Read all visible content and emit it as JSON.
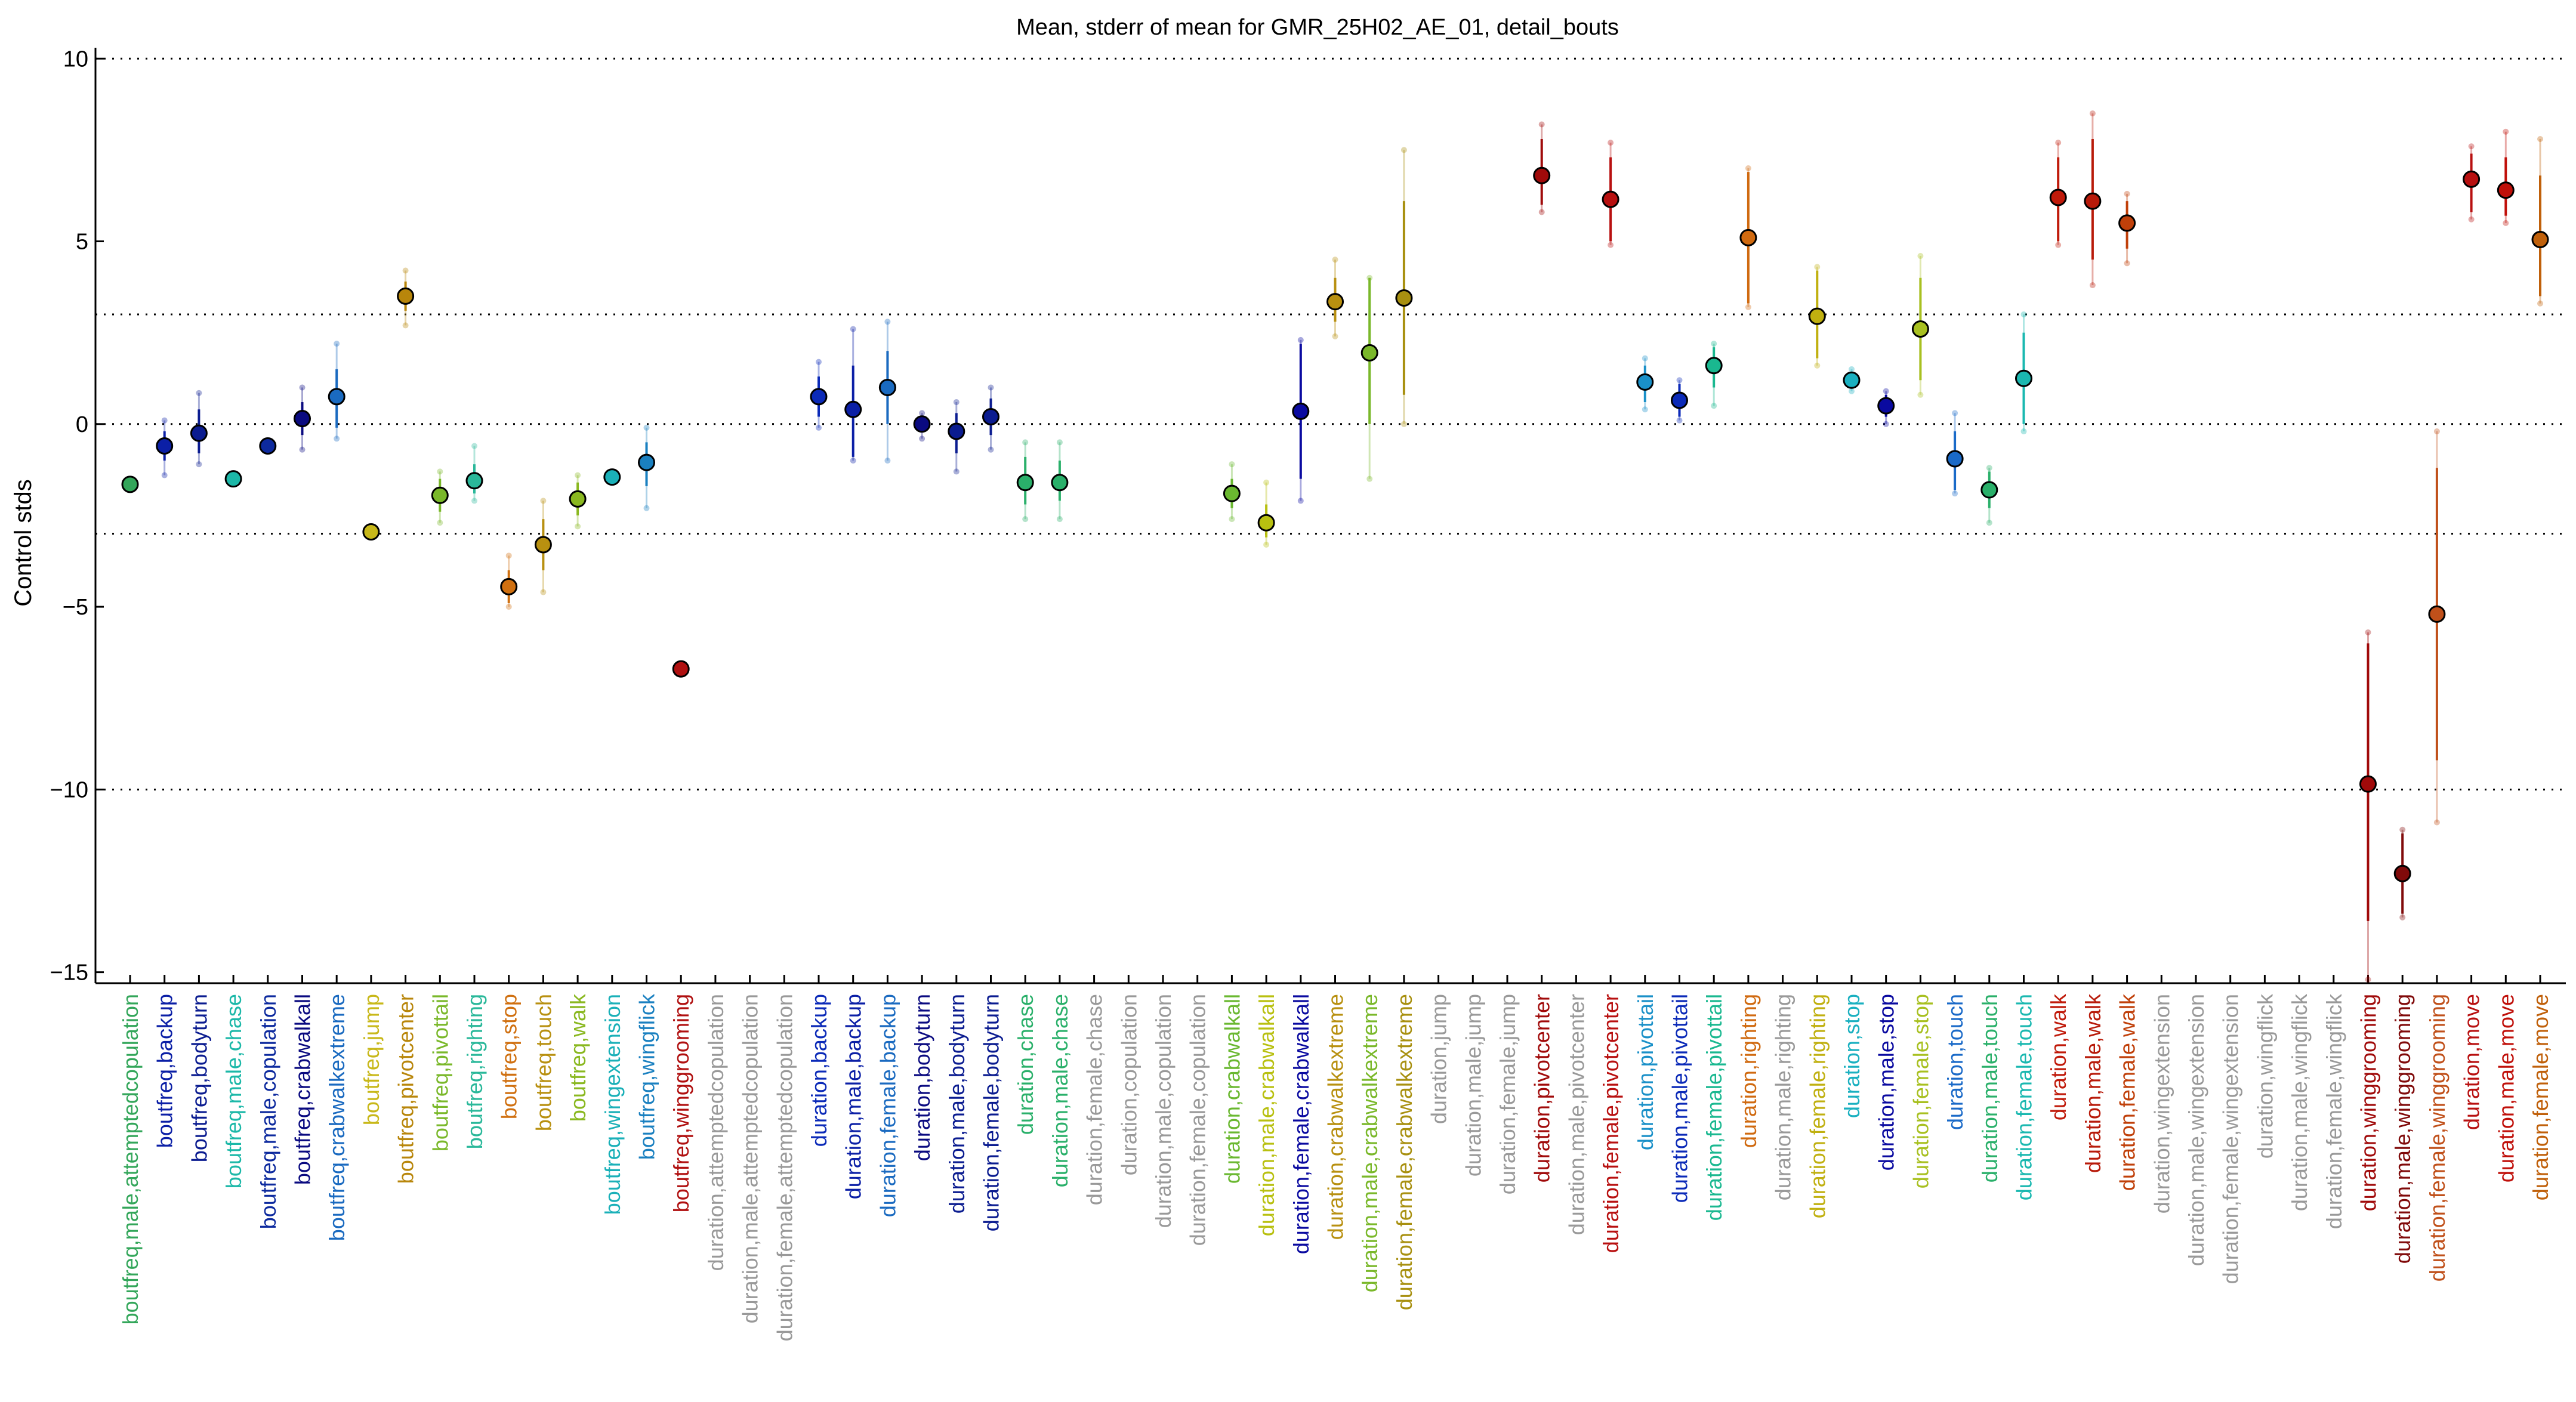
{
  "chart_data": {
    "type": "scatter",
    "title": "Mean, stderr of mean for GMR_25H02_AE_01, detail_bouts",
    "ylabel": "Control stds",
    "ylim": [
      -15.3,
      10.2
    ],
    "yticks": [
      10,
      5,
      0,
      -5,
      -10,
      -15
    ],
    "hlines": [
      10,
      3,
      0,
      -3,
      -10
    ],
    "grid": "dotted horizontal lines",
    "categories": [
      {
        "label": "boutfreq,male,attemptedcopulation",
        "color": "#33a65a",
        "mean": -1.65,
        "err_lo": null,
        "err_hi": null,
        "range_lo": null,
        "range_hi": null
      },
      {
        "label": "boutfreq,backup",
        "color": "#0b1fa6",
        "mean": -0.6,
        "err_lo": -1.0,
        "err_hi": -0.2,
        "range_lo": -1.4,
        "range_hi": 0.1
      },
      {
        "label": "boutfreq,bodyturn",
        "color": "#0b1c90",
        "mean": -0.25,
        "err_lo": -0.8,
        "err_hi": 0.4,
        "range_lo": -1.1,
        "range_hi": 0.85
      },
      {
        "label": "boutfreq,male,chase",
        "color": "#1cb8a8",
        "mean": -1.5,
        "err_lo": null,
        "err_hi": null,
        "range_lo": null,
        "range_hi": null
      },
      {
        "label": "boutfreq,male,copulation",
        "color": "#0d2a9e",
        "mean": -0.6,
        "err_lo": null,
        "err_hi": null,
        "range_lo": null,
        "range_hi": null
      },
      {
        "label": "boutfreq,crabwalkall",
        "color": "#0a0a80",
        "mean": 0.15,
        "err_lo": -0.3,
        "err_hi": 0.6,
        "range_lo": -0.7,
        "range_hi": 1.0
      },
      {
        "label": "boutfreq,crabwalkextreme",
        "color": "#1a6ac0",
        "mean": 0.75,
        "err_lo": -0.1,
        "err_hi": 1.5,
        "range_lo": -0.4,
        "range_hi": 2.2
      },
      {
        "label": "boutfreq,jump",
        "color": "#c8b81a",
        "mean": -2.95,
        "err_lo": null,
        "err_hi": null,
        "range_lo": null,
        "range_hi": null
      },
      {
        "label": "boutfreq,pivotcenter",
        "color": "#b8860b",
        "mean": 3.5,
        "err_lo": 3.1,
        "err_hi": 3.9,
        "range_lo": 2.7,
        "range_hi": 4.2
      },
      {
        "label": "boutfreq,pivottail",
        "color": "#7ab82a",
        "mean": -1.95,
        "err_lo": -2.4,
        "err_hi": -1.5,
        "range_lo": -2.7,
        "range_hi": -1.3
      },
      {
        "label": "boutfreq,righting",
        "color": "#2ab89a",
        "mean": -1.55,
        "err_lo": -1.9,
        "err_hi": -1.1,
        "range_lo": -2.1,
        "range_hi": -0.6
      },
      {
        "label": "boutfreq,stop",
        "color": "#d07010",
        "mean": -4.45,
        "err_lo": -4.9,
        "err_hi": -4.0,
        "range_lo": -5.0,
        "range_hi": -3.6
      },
      {
        "label": "boutfreq,touch",
        "color": "#b89010",
        "mean": -3.3,
        "err_lo": -4.0,
        "err_hi": -2.6,
        "range_lo": -4.6,
        "range_hi": -2.1
      },
      {
        "label": "boutfreq,walk",
        "color": "#8ab820",
        "mean": -2.05,
        "err_lo": -2.5,
        "err_hi": -1.6,
        "range_lo": -2.8,
        "range_hi": -1.4
      },
      {
        "label": "boutfreq,wingextension",
        "color": "#1ab0b8",
        "mean": -1.45,
        "err_lo": null,
        "err_hi": null,
        "range_lo": null,
        "range_hi": null
      },
      {
        "label": "boutfreq,wingflick",
        "color": "#1a80c0",
        "mean": -1.05,
        "err_lo": -1.7,
        "err_hi": -0.5,
        "range_lo": -2.3,
        "range_hi": -0.1
      },
      {
        "label": "boutfreq,winggrooming",
        "color": "#b01010",
        "mean": -6.7,
        "err_lo": null,
        "err_hi": null,
        "range_lo": null,
        "range_hi": null
      },
      {
        "label": "duration,attemptedcopulation",
        "color": "#999999",
        "mean": null,
        "err_lo": null,
        "err_hi": null,
        "range_lo": null,
        "range_hi": null
      },
      {
        "label": "duration,male,attemptedcopulation",
        "color": "#999999",
        "mean": null,
        "err_lo": null,
        "err_hi": null,
        "range_lo": null,
        "range_hi": null
      },
      {
        "label": "duration,female,attemptedcopulation",
        "color": "#999999",
        "mean": null,
        "err_lo": null,
        "err_hi": null,
        "range_lo": null,
        "range_hi": null
      },
      {
        "label": "duration,backup",
        "color": "#0b2ab8",
        "mean": 0.75,
        "err_lo": 0.2,
        "err_hi": 1.3,
        "range_lo": -0.1,
        "range_hi": 1.7
      },
      {
        "label": "duration,male,backup",
        "color": "#0b1fa6",
        "mean": 0.4,
        "err_lo": -0.9,
        "err_hi": 1.6,
        "range_lo": -1.0,
        "range_hi": 2.6
      },
      {
        "label": "duration,female,backup",
        "color": "#1a6ac0",
        "mean": 1.0,
        "err_lo": 0.0,
        "err_hi": 2.0,
        "range_lo": -1.0,
        "range_hi": 2.8
      },
      {
        "label": "duration,bodyturn",
        "color": "#0a0a80",
        "mean": 0.0,
        "err_lo": -0.2,
        "err_hi": 0.2,
        "range_lo": -0.4,
        "range_hi": 0.3
      },
      {
        "label": "duration,male,bodyturn",
        "color": "#0b1c90",
        "mean": -0.2,
        "err_lo": -0.8,
        "err_hi": 0.3,
        "range_lo": -1.3,
        "range_hi": 0.6
      },
      {
        "label": "duration,female,bodyturn",
        "color": "#0b1c90",
        "mean": 0.2,
        "err_lo": -0.3,
        "err_hi": 0.7,
        "range_lo": -0.7,
        "range_hi": 1.0
      },
      {
        "label": "duration,chase",
        "color": "#2ab06a",
        "mean": -1.6,
        "err_lo": -2.2,
        "err_hi": -0.9,
        "range_lo": -2.6,
        "range_hi": -0.5
      },
      {
        "label": "duration,male,chase",
        "color": "#2ab06a",
        "mean": -1.6,
        "err_lo": -2.1,
        "err_hi": -1.0,
        "range_lo": -2.6,
        "range_hi": -0.5
      },
      {
        "label": "duration,female,chase",
        "color": "#999999",
        "mean": null,
        "err_lo": null,
        "err_hi": null,
        "range_lo": null,
        "range_hi": null
      },
      {
        "label": "duration,copulation",
        "color": "#999999",
        "mean": null,
        "err_lo": null,
        "err_hi": null,
        "range_lo": null,
        "range_hi": null
      },
      {
        "label": "duration,male,copulation",
        "color": "#999999",
        "mean": null,
        "err_lo": null,
        "err_hi": null,
        "range_lo": null,
        "range_hi": null
      },
      {
        "label": "duration,female,copulation",
        "color": "#999999",
        "mean": null,
        "err_lo": null,
        "err_hi": null,
        "range_lo": null,
        "range_hi": null
      },
      {
        "label": "duration,crabwalkall",
        "color": "#6ab830",
        "mean": -1.9,
        "err_lo": -2.3,
        "err_hi": -1.5,
        "range_lo": -2.6,
        "range_hi": -1.1
      },
      {
        "label": "duration,male,crabwalkall",
        "color": "#b8c010",
        "mean": -2.7,
        "err_lo": -3.1,
        "err_hi": -2.2,
        "range_lo": -3.3,
        "range_hi": -1.6
      },
      {
        "label": "duration,female,crabwalkall",
        "color": "#0a0aa0",
        "mean": 0.35,
        "err_lo": -1.5,
        "err_hi": 2.2,
        "range_lo": -2.1,
        "range_hi": 2.3
      },
      {
        "label": "duration,crabwalkextreme",
        "color": "#b89010",
        "mean": 3.35,
        "err_lo": 2.8,
        "err_hi": 4.0,
        "range_lo": 2.4,
        "range_hi": 4.5
      },
      {
        "label": "duration,male,crabwalkextreme",
        "color": "#7ab82a",
        "mean": 1.95,
        "err_lo": 0.0,
        "err_hi": 4.0,
        "range_lo": -1.5,
        "range_hi": 4.0
      },
      {
        "label": "duration,female,crabwalkextreme",
        "color": "#a89010",
        "mean": 3.45,
        "err_lo": 0.8,
        "err_hi": 6.1,
        "range_lo": 0.0,
        "range_hi": 7.5
      },
      {
        "label": "duration,jump",
        "color": "#999999",
        "mean": null,
        "err_lo": null,
        "err_hi": null,
        "range_lo": null,
        "range_hi": null
      },
      {
        "label": "duration,male,jump",
        "color": "#999999",
        "mean": null,
        "err_lo": null,
        "err_hi": null,
        "range_lo": null,
        "range_hi": null
      },
      {
        "label": "duration,female,jump",
        "color": "#999999",
        "mean": null,
        "err_lo": null,
        "err_hi": null,
        "range_lo": null,
        "range_hi": null
      },
      {
        "label": "duration,pivotcenter",
        "color": "#a00a0a",
        "mean": 6.8,
        "err_lo": 6.0,
        "err_hi": 7.8,
        "range_lo": 5.8,
        "range_hi": 8.2
      },
      {
        "label": "duration,male,pivotcenter",
        "color": "#999999",
        "mean": null,
        "err_lo": null,
        "err_hi": null,
        "range_lo": null,
        "range_hi": null
      },
      {
        "label": "duration,female,pivotcenter",
        "color": "#b81010",
        "mean": 6.15,
        "err_lo": 5.0,
        "err_hi": 7.3,
        "range_lo": 4.9,
        "range_hi": 7.7
      },
      {
        "label": "duration,pivottail",
        "color": "#1a90c8",
        "mean": 1.15,
        "err_lo": 0.6,
        "err_hi": 1.6,
        "range_lo": 0.4,
        "range_hi": 1.8
      },
      {
        "label": "duration,male,pivottail",
        "color": "#0b2ab8",
        "mean": 0.65,
        "err_lo": 0.2,
        "err_hi": 1.1,
        "range_lo": 0.1,
        "range_hi": 1.2
      },
      {
        "label": "duration,female,pivottail",
        "color": "#1ab890",
        "mean": 1.6,
        "err_lo": 1.0,
        "err_hi": 2.1,
        "range_lo": 0.5,
        "range_hi": 2.2
      },
      {
        "label": "duration,righting",
        "color": "#d06a10",
        "mean": 5.1,
        "err_lo": 3.3,
        "err_hi": 6.9,
        "range_lo": 3.2,
        "range_hi": 7.0
      },
      {
        "label": "duration,male,righting",
        "color": "#999999",
        "mean": null,
        "err_lo": null,
        "err_hi": null,
        "range_lo": null,
        "range_hi": null
      },
      {
        "label": "duration,female,righting",
        "color": "#c0b010",
        "mean": 2.95,
        "err_lo": 1.8,
        "err_hi": 4.2,
        "range_lo": 1.6,
        "range_hi": 4.3
      },
      {
        "label": "duration,stop",
        "color": "#1ab0c0",
        "mean": 1.2,
        "err_lo": 1.0,
        "err_hi": 1.4,
        "range_lo": 0.9,
        "range_hi": 1.5
      },
      {
        "label": "duration,male,stop",
        "color": "#0a0aa0",
        "mean": 0.5,
        "err_lo": 0.2,
        "err_hi": 0.8,
        "range_lo": 0.0,
        "range_hi": 0.9
      },
      {
        "label": "duration,female,stop",
        "color": "#a8c020",
        "mean": 2.6,
        "err_lo": 1.2,
        "err_hi": 4.0,
        "range_lo": 0.8,
        "range_hi": 4.6
      },
      {
        "label": "duration,touch",
        "color": "#1a6ac8",
        "mean": -0.95,
        "err_lo": -1.8,
        "err_hi": -0.2,
        "range_lo": -1.9,
        "range_hi": 0.3
      },
      {
        "label": "duration,male,touch",
        "color": "#2ab06a",
        "mean": -1.8,
        "err_lo": -2.3,
        "err_hi": -1.3,
        "range_lo": -2.7,
        "range_hi": -1.2
      },
      {
        "label": "duration,female,touch",
        "color": "#1ab8b0",
        "mean": 1.25,
        "err_lo": 0.0,
        "err_hi": 2.5,
        "range_lo": -0.2,
        "range_hi": 3.0
      },
      {
        "label": "duration,walk",
        "color": "#c01a0a",
        "mean": 6.2,
        "err_lo": 5.0,
        "err_hi": 7.3,
        "range_lo": 4.9,
        "range_hi": 7.7
      },
      {
        "label": "duration,male,walk",
        "color": "#b81a0a",
        "mean": 6.1,
        "err_lo": 4.5,
        "err_hi": 7.8,
        "range_lo": 3.8,
        "range_hi": 8.5
      },
      {
        "label": "duration,female,walk",
        "color": "#c0400a",
        "mean": 5.5,
        "err_lo": 4.8,
        "err_hi": 6.1,
        "range_lo": 4.4,
        "range_hi": 6.3
      },
      {
        "label": "duration,wingextension",
        "color": "#999999",
        "mean": null,
        "err_lo": null,
        "err_hi": null,
        "range_lo": null,
        "range_hi": null
      },
      {
        "label": "duration,male,wingextension",
        "color": "#999999",
        "mean": null,
        "err_lo": null,
        "err_hi": null,
        "range_lo": null,
        "range_hi": null
      },
      {
        "label": "duration,female,wingextension",
        "color": "#999999",
        "mean": null,
        "err_lo": null,
        "err_hi": null,
        "range_lo": null,
        "range_hi": null
      },
      {
        "label": "duration,wingflick",
        "color": "#999999",
        "mean": null,
        "err_lo": null,
        "err_hi": null,
        "range_lo": null,
        "range_hi": null
      },
      {
        "label": "duration,male,wingflick",
        "color": "#999999",
        "mean": null,
        "err_lo": null,
        "err_hi": null,
        "range_lo": null,
        "range_hi": null
      },
      {
        "label": "duration,female,wingflick",
        "color": "#999999",
        "mean": null,
        "err_lo": null,
        "err_hi": null,
        "range_lo": null,
        "range_hi": null
      },
      {
        "label": "duration,winggrooming",
        "color": "#a00a0a",
        "mean": -9.85,
        "err_lo": -13.6,
        "err_hi": -6.0,
        "range_lo": -15.2,
        "range_hi": -5.7
      },
      {
        "label": "duration,male,winggrooming",
        "color": "#800a0a",
        "mean": -12.3,
        "err_lo": -13.4,
        "err_hi": -11.2,
        "range_lo": -13.5,
        "range_hi": -11.1
      },
      {
        "label": "duration,female,winggrooming",
        "color": "#c0501a",
        "mean": -5.2,
        "err_lo": -9.2,
        "err_hi": -1.2,
        "range_lo": -10.9,
        "range_hi": -0.2
      },
      {
        "label": "duration,move",
        "color": "#b81010",
        "mean": 6.7,
        "err_lo": 5.8,
        "err_hi": 7.4,
        "range_lo": 5.6,
        "range_hi": 7.6
      },
      {
        "label": "duration,male,move",
        "color": "#c0100a",
        "mean": 6.4,
        "err_lo": 5.7,
        "err_hi": 7.3,
        "range_lo": 5.5,
        "range_hi": 8.0
      },
      {
        "label": "duration,female,move",
        "color": "#c0600a",
        "mean": 5.05,
        "err_lo": 3.5,
        "err_hi": 6.8,
        "range_lo": 3.3,
        "range_hi": 7.8
      }
    ]
  }
}
